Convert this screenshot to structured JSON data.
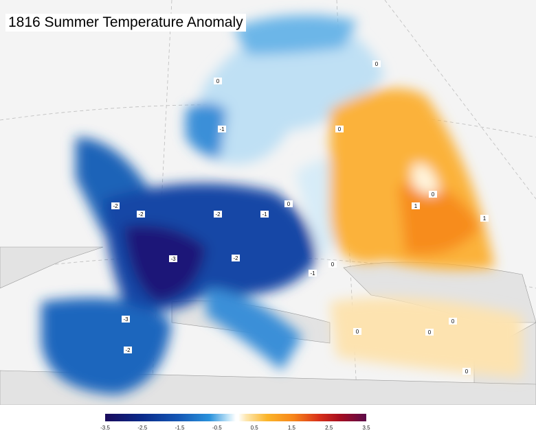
{
  "title": "1816 Summer Temperature Anomaly",
  "colorbar": {
    "min": -3.5,
    "max": 3.5,
    "ticks": [
      "-3.5",
      "-2.5",
      "-1.5",
      "-0.5",
      "0.5",
      "1.5",
      "2.5",
      "3.5"
    ],
    "colors": [
      "#1a0b5c",
      "#0a2a8a",
      "#1457b5",
      "#2a92dc",
      "#bfe3f7",
      "#ffffff",
      "#fde7b0",
      "#fbb52a",
      "#f7861a",
      "#d8301a",
      "#a50d20",
      "#5c0b4a"
    ]
  },
  "contour_labels": [
    "-2",
    "-2",
    "-2",
    "-1",
    "-3",
    "-2",
    "-1",
    "-3",
    "-2",
    "0",
    "0",
    "0",
    "1",
    "1",
    "0",
    "-1",
    "0",
    "0",
    "0",
    "0",
    "0",
    "0"
  ]
}
